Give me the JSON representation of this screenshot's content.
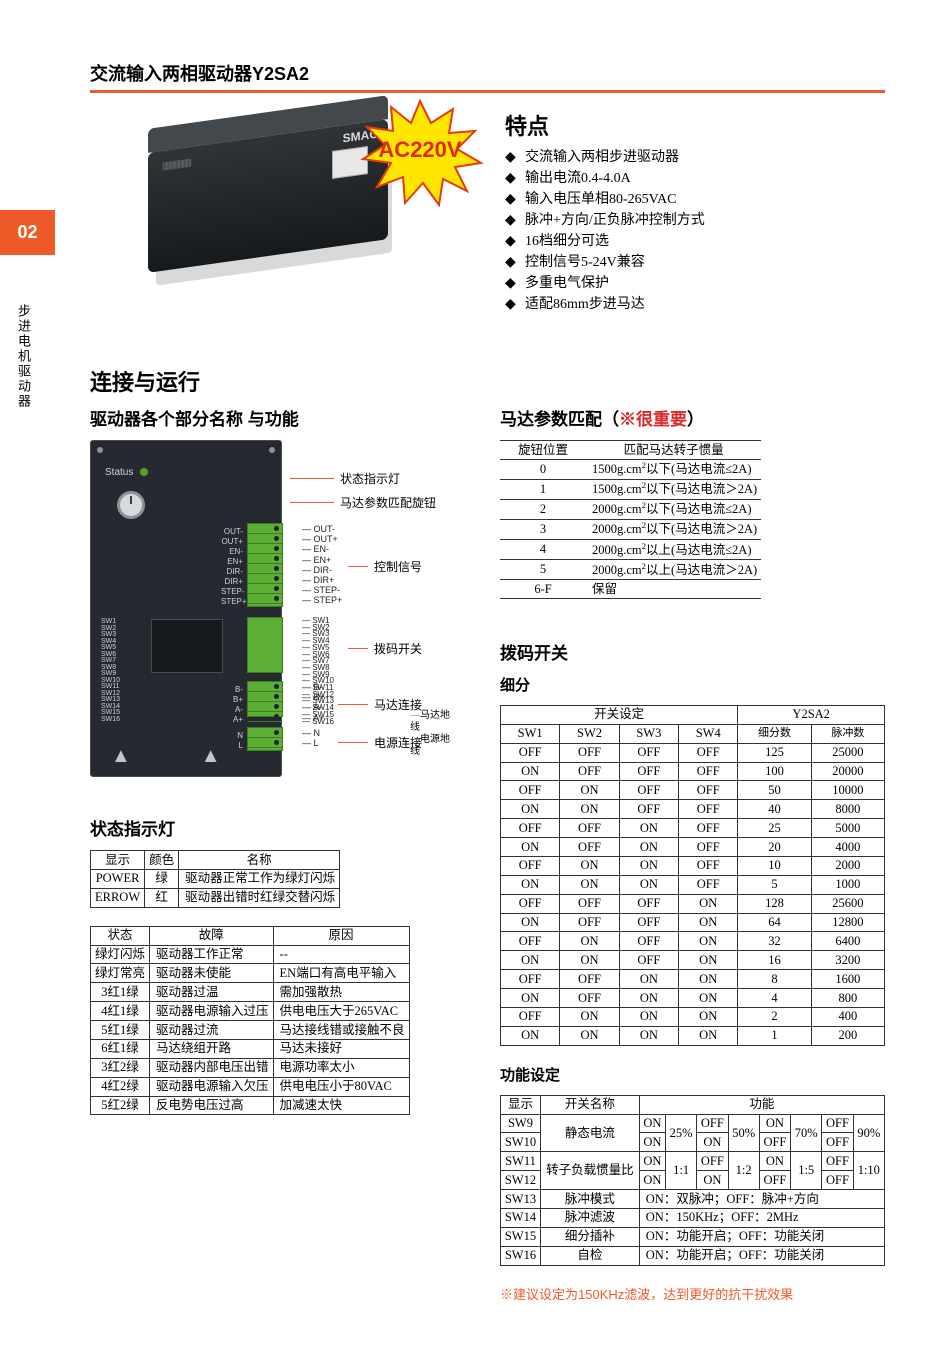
{
  "page_tab": "02",
  "side_label": "步进电机驱动器",
  "title": "交流输入两相驱动器Y2SA2",
  "title_rule_color": "#ef5a29",
  "burst": {
    "label": "AC220V",
    "fill": "#ffe600",
    "stroke": "#e63b0e",
    "text_color": "#e02a0c"
  },
  "product_badge": "SMAC",
  "features": {
    "heading": "特点",
    "items": [
      "交流输入两相步进驱动器",
      "输出电流0.4-4.0A",
      "输入电压单相80-265VAC",
      "脉冲+方向/正负脉冲控制方式",
      "16档细分可选",
      "控制信号5-24V兼容",
      "多重电气保护",
      "适配86mm步进马达"
    ]
  },
  "sec_connect": "连接与运行",
  "sec_parts": "驱动器各个部分名称 与功能",
  "diagram": {
    "callouts": {
      "status_led": "状态指示灯",
      "knob": "马达参数匹配旋钮",
      "ctrl": "控制信号",
      "dip": "拨码开关",
      "motor": "马达连接",
      "power": "电源连接",
      "motor_wire": "马达地线",
      "power_lines": "电源地线"
    },
    "pins8": [
      "OUT-",
      "OUT+",
      "EN-",
      "EN+",
      "DIR-",
      "DIR+",
      "STEP-",
      "STEP+"
    ],
    "pins_dip": [
      "SW1",
      "SW2",
      "SW3",
      "SW4",
      "SW5",
      "SW6",
      "SW7",
      "SW8",
      "SW9",
      "SW10",
      "SW11",
      "SW12",
      "SW13",
      "SW14",
      "SW15",
      "SW16"
    ],
    "pins4": [
      "B-",
      "B+",
      "A-",
      "A+"
    ],
    "pins2": [
      "N",
      "L"
    ]
  },
  "match": {
    "title_prefix": "马达参数匹配（",
    "title_red": "※很重要",
    "title_suffix": "）",
    "headers": [
      "旋钮位置",
      "匹配马达转子惯量"
    ],
    "rows": [
      [
        "0",
        "1500g.cm²以下(马达电流≤2A)"
      ],
      [
        "1",
        "1500g.cm²以下(马达电流＞2A)"
      ],
      [
        "2",
        "2000g.cm²以下(马达电流≤2A)"
      ],
      [
        "3",
        "2000g.cm²以下(马达电流＞2A)"
      ],
      [
        "4",
        "2000g.cm²以上(马达电流≤2A)"
      ],
      [
        "5",
        "2000g.cm²以上(马达电流＞2A)"
      ],
      [
        "6-F",
        "保留"
      ]
    ]
  },
  "dip_heading": "拨码开关",
  "subdiv": {
    "label": "细分",
    "top_headers": [
      "开关设定",
      "Y2SA2"
    ],
    "headers": [
      "SW1",
      "SW2",
      "SW3",
      "SW4",
      "细分数",
      "脉冲数"
    ],
    "rows": [
      [
        "OFF",
        "OFF",
        "OFF",
        "OFF",
        "125",
        "25000"
      ],
      [
        "ON",
        "OFF",
        "OFF",
        "OFF",
        "100",
        "20000"
      ],
      [
        "OFF",
        "ON",
        "OFF",
        "OFF",
        "50",
        "10000"
      ],
      [
        "ON",
        "ON",
        "OFF",
        "OFF",
        "40",
        "8000"
      ],
      [
        "OFF",
        "OFF",
        "ON",
        "OFF",
        "25",
        "5000"
      ],
      [
        "ON",
        "OFF",
        "ON",
        "OFF",
        "20",
        "4000"
      ],
      [
        "OFF",
        "ON",
        "ON",
        "OFF",
        "10",
        "2000"
      ],
      [
        "ON",
        "ON",
        "ON",
        "OFF",
        "5",
        "1000"
      ],
      [
        "OFF",
        "OFF",
        "OFF",
        "ON",
        "128",
        "25600"
      ],
      [
        "ON",
        "OFF",
        "OFF",
        "ON",
        "64",
        "12800"
      ],
      [
        "OFF",
        "ON",
        "OFF",
        "ON",
        "32",
        "6400"
      ],
      [
        "ON",
        "ON",
        "OFF",
        "ON",
        "16",
        "3200"
      ],
      [
        "OFF",
        "OFF",
        "ON",
        "ON",
        "8",
        "1600"
      ],
      [
        "ON",
        "OFF",
        "ON",
        "ON",
        "4",
        "800"
      ],
      [
        "OFF",
        "ON",
        "ON",
        "ON",
        "2",
        "400"
      ],
      [
        "ON",
        "ON",
        "ON",
        "ON",
        "1",
        "200"
      ]
    ]
  },
  "status": {
    "heading": "状态指示灯",
    "t1_headers": [
      "显示",
      "颜色",
      "名称"
    ],
    "t1_rows": [
      [
        "POWER",
        "绿",
        "驱动器正常工作为绿灯闪烁"
      ],
      [
        "ERROW",
        "红",
        "驱动器出错时红绿交替闪烁"
      ]
    ],
    "t2_headers": [
      "状态",
      "故障",
      "原因"
    ],
    "t2_rows": [
      [
        "绿灯闪烁",
        "驱动器工作正常",
        "--"
      ],
      [
        "绿灯常亮",
        "驱动器未使能",
        "EN端口有高电平输入"
      ],
      [
        "3红1绿",
        "驱动器过温",
        "需加强散热"
      ],
      [
        "4红1绿",
        "驱动器电源输入过压",
        "供电电压大于265VAC"
      ],
      [
        "5红1绿",
        "驱动器过流",
        "马达接线错或接触不良"
      ],
      [
        "6红1绿",
        "马达绕组开路",
        "马达未接好"
      ],
      [
        "3红2绿",
        "驱动器内部电压出错",
        "电源功率太小"
      ],
      [
        "4红2绿",
        "驱动器电源输入欠压",
        "供电电压小于80VAC"
      ],
      [
        "5红2绿",
        "反电势电压过高",
        "加减速太快"
      ]
    ]
  },
  "func": {
    "heading": "功能设定",
    "headers": [
      "显示",
      "开关名称",
      "功能"
    ],
    "static": {
      "name": "静态电流",
      "sw": [
        "SW9",
        "SW10"
      ],
      "opts": [
        {
          "t": "ON",
          "b": "ON",
          "v": "25%"
        },
        {
          "t": "OFF",
          "b": "ON",
          "v": "50%"
        },
        {
          "t": "ON",
          "b": "OFF",
          "v": "70%"
        },
        {
          "t": "OFF",
          "b": "OFF",
          "v": "90%"
        }
      ]
    },
    "inertia": {
      "name": "转子负载惯量比",
      "sw": [
        "SW11",
        "SW12"
      ],
      "opts": [
        {
          "t": "ON",
          "b": "ON",
          "v": "1:1"
        },
        {
          "t": "OFF",
          "b": "ON",
          "v": "1:2"
        },
        {
          "t": "ON",
          "b": "OFF",
          "v": "1:5"
        },
        {
          "t": "OFF",
          "b": "OFF",
          "v": "1:10"
        }
      ]
    },
    "simple": [
      {
        "sw": "SW13",
        "name": "脉冲模式",
        "desc": "ON：双脉冲；OFF：脉冲+方向"
      },
      {
        "sw": "SW14",
        "name": "脉冲滤波",
        "desc": "ON：150KHz；OFF：2MHz"
      },
      {
        "sw": "SW15",
        "name": "细分插补",
        "desc": "ON：功能开启；OFF：功能关闭"
      },
      {
        "sw": "SW16",
        "name": "自检",
        "desc": "ON：功能开启；OFF：功能关闭"
      }
    ],
    "note": "※建议设定为150KHz滤波，达到更好的抗干扰效果"
  }
}
